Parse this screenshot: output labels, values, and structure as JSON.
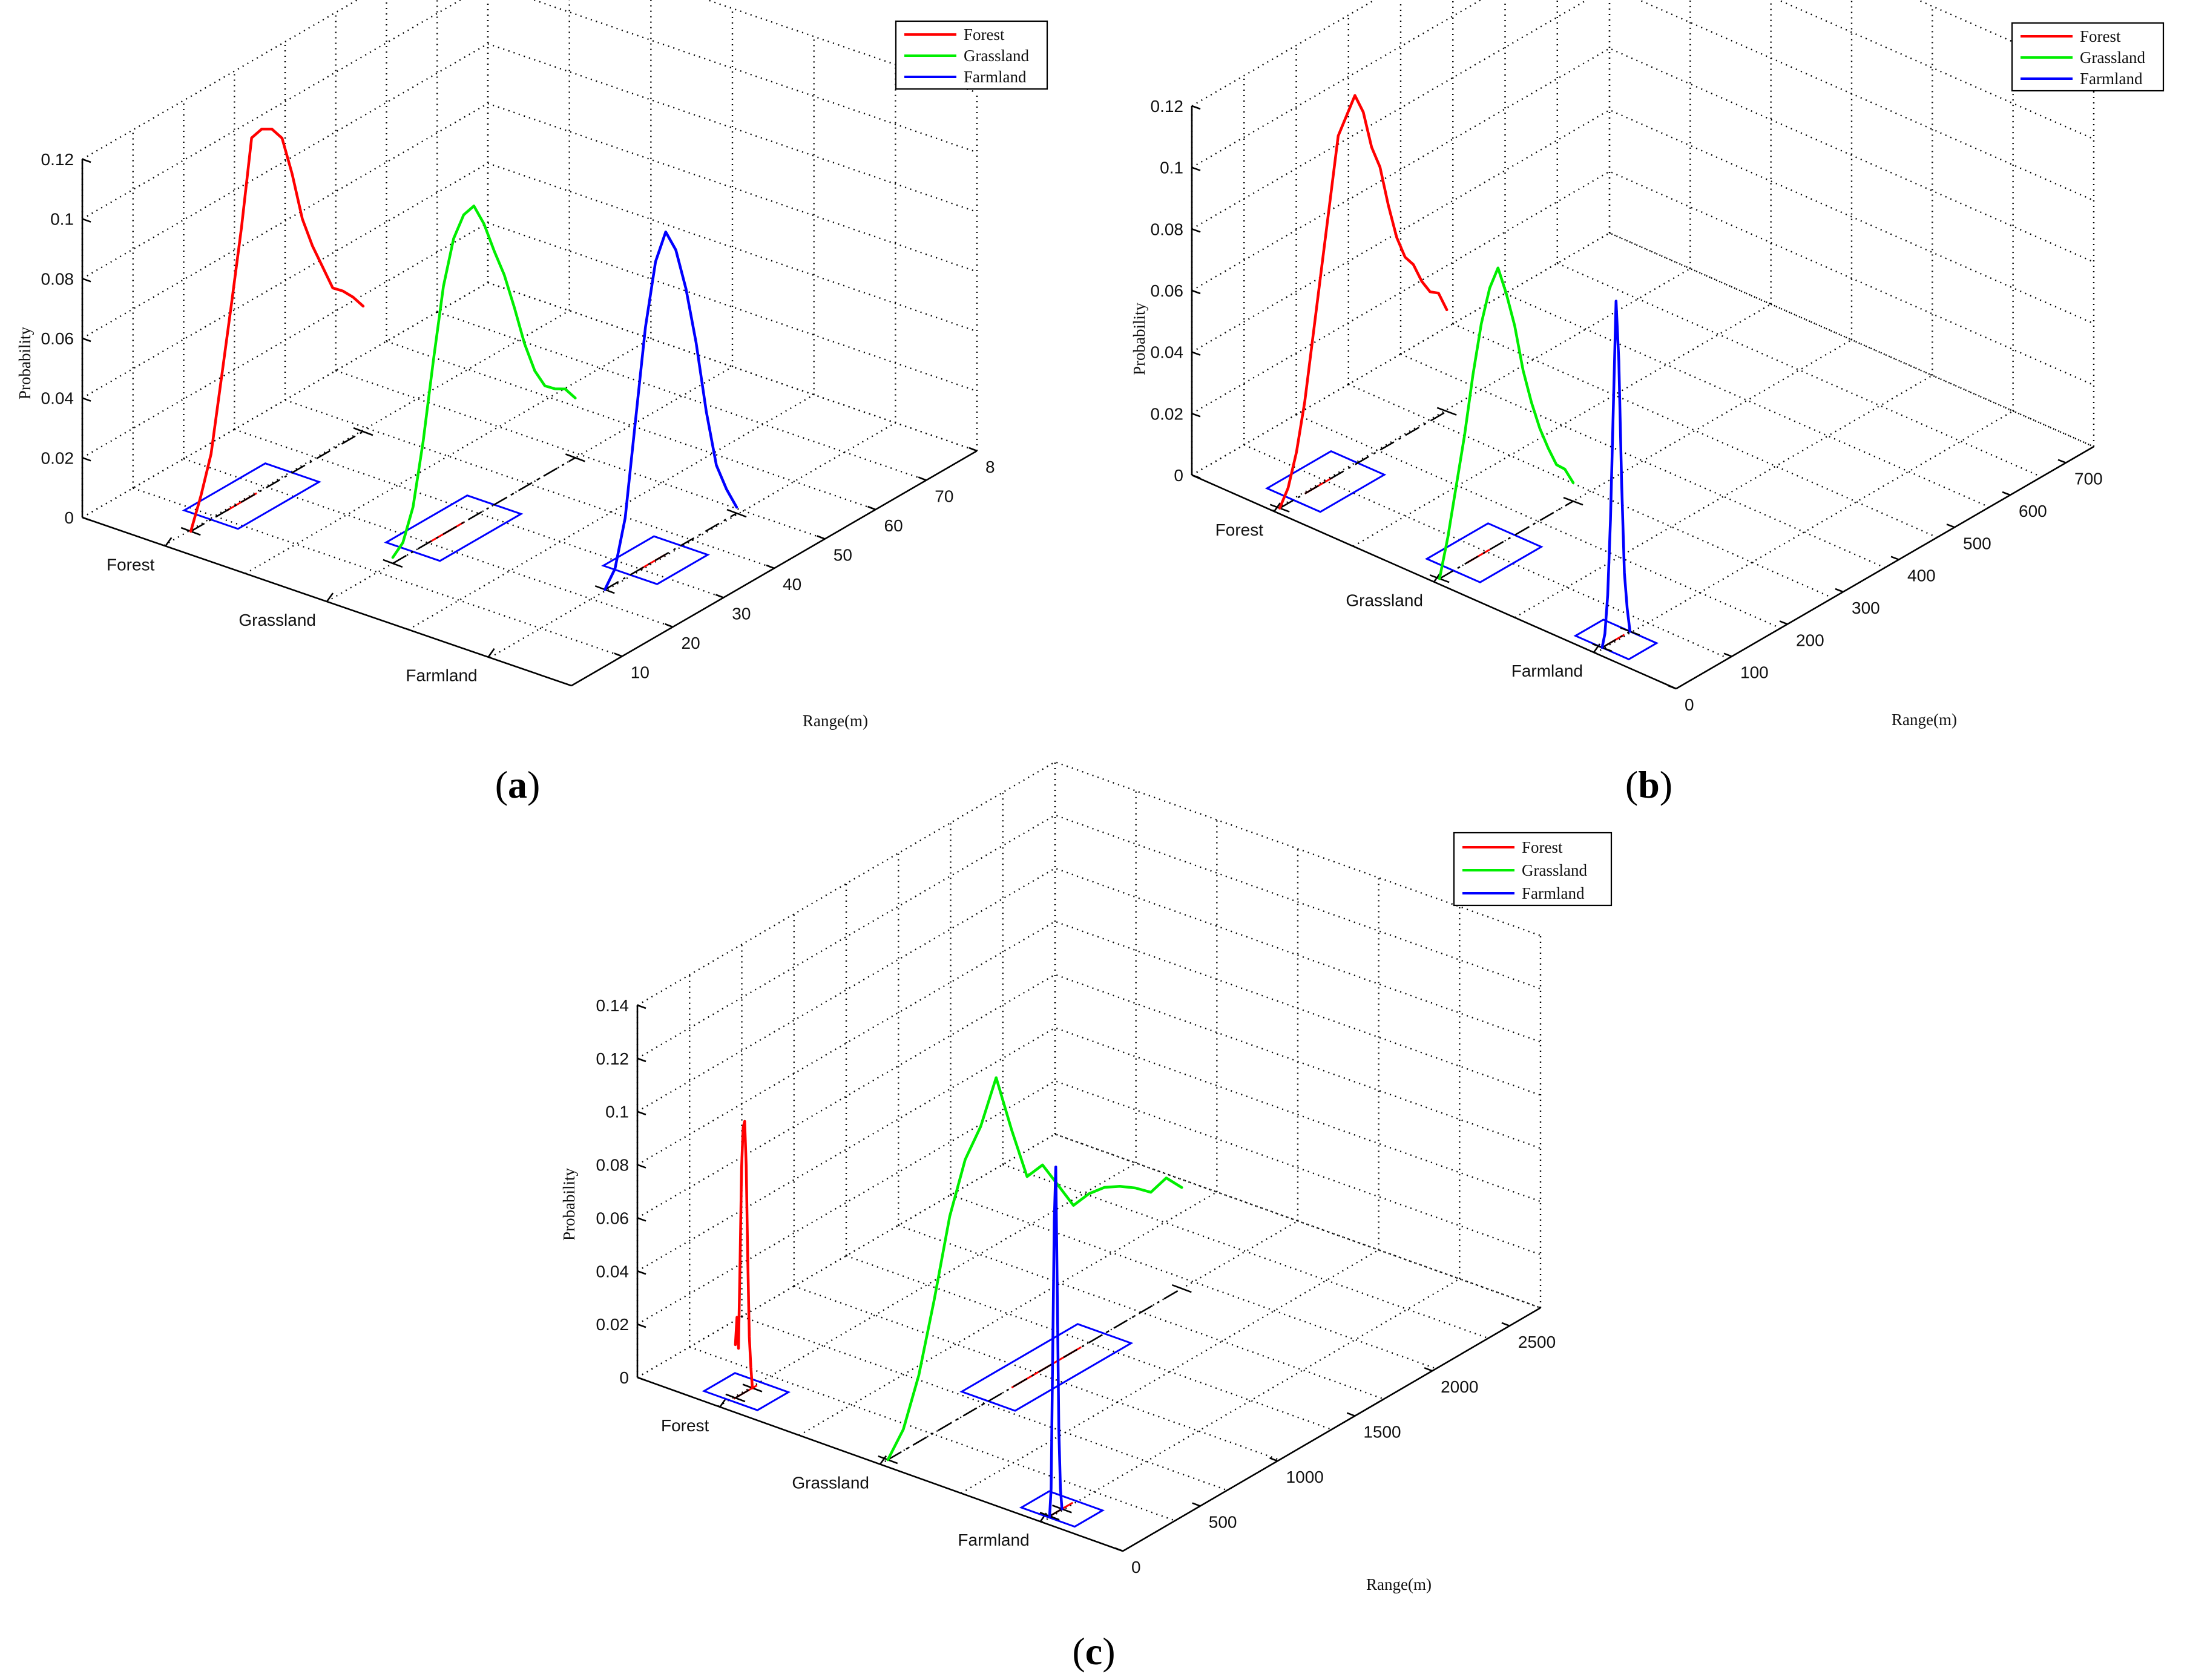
{
  "colors": {
    "forest": "#ff0000",
    "grassland": "#00ee00",
    "farmland": "#0000ff",
    "axis": "#000000"
  },
  "chart_data": [
    {
      "panel": "a",
      "type": "line",
      "caption": "(a)",
      "caption_letter": "a",
      "title": "",
      "xlabel": "Range(m)",
      "ylabel": "Probability",
      "category_axis": [
        "Forest",
        "Grassland",
        "Farmland"
      ],
      "range_ticks": [
        "10",
        "20",
        "30",
        "40",
        "50",
        "60",
        "70",
        "8"
      ],
      "range_lim": [
        0,
        80
      ],
      "zlim": [
        0,
        0.12
      ],
      "z_ticks": [
        "0",
        "0.02",
        "0.04",
        "0.06",
        "0.08",
        "0.1",
        "0.12"
      ],
      "legend": [
        "Forest",
        "Grassland",
        "Farmland"
      ],
      "legend_position": "top-right",
      "series": [
        {
          "name": "Forest",
          "category": "Forest",
          "x": [
            5,
            7,
            9,
            11,
            13,
            15,
            17,
            19,
            21,
            23,
            25,
            27,
            29,
            31,
            33,
            35,
            37,
            39
          ],
          "values": [
            0.0,
            0.01,
            0.022,
            0.045,
            0.068,
            0.092,
            0.12,
            0.121,
            0.119,
            0.114,
            0.1,
            0.083,
            0.072,
            0.063,
            0.054,
            0.051,
            0.047,
            0.042
          ]
        },
        {
          "name": "Grassland",
          "category": "Grassland",
          "x": [
            13,
            15,
            17,
            19,
            21,
            23,
            25,
            27,
            29,
            31,
            33,
            35,
            37,
            39,
            41,
            43,
            45,
            47,
            49
          ],
          "values": [
            0.002,
            0.005,
            0.015,
            0.035,
            0.06,
            0.083,
            0.097,
            0.103,
            0.104,
            0.096,
            0.085,
            0.075,
            0.062,
            0.048,
            0.037,
            0.03,
            0.027,
            0.025,
            0.02
          ]
        },
        {
          "name": "Farmland",
          "category": "Farmland",
          "x": [
            23,
            25,
            27,
            29,
            31,
            33,
            35,
            37,
            39,
            41,
            43,
            45,
            47,
            49
          ],
          "values": [
            0.0,
            0.005,
            0.02,
            0.05,
            0.08,
            0.1,
            0.108,
            0.1,
            0.085,
            0.065,
            0.04,
            0.02,
            0.01,
            0.002
          ]
        }
      ],
      "frames": [
        {
          "category": "Forest",
          "x_range": [
            9,
            25
          ],
          "marker_x": [
            12,
            18
          ]
        },
        {
          "category": "Grassland",
          "x_range": [
            17,
            33
          ],
          "marker_x": [
            20,
            27
          ]
        },
        {
          "category": "Farmland",
          "x_range": [
            28,
            38
          ],
          "marker_x": [
            30,
            35
          ]
        }
      ]
    },
    {
      "panel": "b",
      "type": "line",
      "caption": "(b)",
      "caption_letter": "b",
      "title": "",
      "xlabel": "Range(m)",
      "ylabel": "Probability",
      "category_axis": [
        "Forest",
        "Grassland",
        "Farmland"
      ],
      "range_ticks": [
        "0",
        "100",
        "200",
        "300",
        "400",
        "500",
        "600",
        "700"
      ],
      "range_lim": [
        0,
        750
      ],
      "zlim": [
        0,
        0.12
      ],
      "z_ticks": [
        "0",
        "0.02",
        "0.04",
        "0.06",
        "0.08",
        "0.1",
        "0.12"
      ],
      "legend": [
        "Forest",
        "Grassland",
        "Farmland"
      ],
      "legend_position": "top-right",
      "series": [
        {
          "name": "Forest",
          "category": "Forest",
          "x": [
            10,
            25,
            40,
            55,
            70,
            85,
            100,
            115,
            130,
            145,
            160,
            175,
            190,
            205,
            220,
            235,
            250,
            265,
            280,
            295,
            310
          ],
          "values": [
            0.0,
            0.005,
            0.015,
            0.03,
            0.05,
            0.07,
            0.09,
            0.11,
            0.115,
            0.12,
            0.113,
            0.1,
            0.092,
            0.078,
            0.066,
            0.058,
            0.054,
            0.047,
            0.042,
            0.04,
            0.033
          ]
        },
        {
          "name": "Grassland",
          "category": "Grassland",
          "x": [
            10,
            25,
            40,
            55,
            70,
            85,
            100,
            115,
            130,
            145,
            160,
            175,
            190,
            205,
            220,
            235,
            250
          ],
          "values": [
            0.0,
            0.012,
            0.027,
            0.042,
            0.06,
            0.075,
            0.085,
            0.09,
            0.08,
            0.068,
            0.052,
            0.04,
            0.03,
            0.022,
            0.015,
            0.012,
            0.006
          ]
        },
        {
          "name": "Farmland",
          "category": "Farmland",
          "x": [
            15,
            20,
            25,
            30,
            35,
            40,
            45,
            50,
            55,
            60,
            65
          ],
          "values": [
            0.0,
            0.004,
            0.016,
            0.04,
            0.075,
            0.11,
            0.09,
            0.05,
            0.02,
            0.008,
            0.0
          ]
        }
      ],
      "frames": [
        {
          "category": "Forest",
          "x_range": [
            35,
            150
          ],
          "marker_x": [
            55,
            105
          ]
        },
        {
          "category": "Grassland",
          "x_range": [
            35,
            145
          ],
          "marker_x": [
            60,
            100
          ]
        },
        {
          "category": "Farmland",
          "x_range": [
            15,
            65
          ],
          "marker_x": [
            22,
            55
          ]
        }
      ]
    },
    {
      "panel": "c",
      "type": "line",
      "caption": "(c)",
      "caption_letter": "c",
      "title": "",
      "xlabel": "Range(m)",
      "ylabel": "Probability",
      "category_axis": [
        "Forest",
        "Grassland",
        "Farmland"
      ],
      "range_ticks": [
        "0",
        "500",
        "1000",
        "1500",
        "2000",
        "2500"
      ],
      "range_lim": [
        0,
        2700
      ],
      "zlim": [
        0,
        0.14
      ],
      "z_ticks": [
        "0",
        "0.02",
        "0.04",
        "0.06",
        "0.08",
        "0.1",
        "0.12",
        "0.14"
      ],
      "legend": [
        "Forest",
        "Grassland",
        "Farmland"
      ],
      "legend_position": "top-right",
      "series": [
        {
          "name": "Forest",
          "category": "Forest",
          "x": [
            100,
            110,
            120,
            130,
            140,
            150,
            160,
            170,
            180,
            190,
            200,
            210
          ],
          "values": [
            0.02,
            0.03,
            0.018,
            0.05,
            0.085,
            0.1,
            0.102,
            0.085,
            0.05,
            0.02,
            0.008,
            0.0
          ]
        },
        {
          "name": "Grassland",
          "category": "Grassland",
          "x": [
            50,
            150,
            250,
            350,
            450,
            550,
            650,
            750,
            850,
            950,
            1050,
            1150,
            1250,
            1350,
            1450,
            1550,
            1650,
            1750,
            1850,
            1950
          ],
          "values": [
            0.0,
            0.008,
            0.025,
            0.05,
            0.078,
            0.096,
            0.105,
            0.12,
            0.097,
            0.076,
            0.077,
            0.066,
            0.055,
            0.056,
            0.055,
            0.052,
            0.048,
            0.043,
            0.045,
            0.038
          ]
        },
        {
          "name": "Farmland",
          "category": "Farmland",
          "x": [
            60,
            70,
            80,
            90,
            100,
            110,
            120,
            130,
            140
          ],
          "values": [
            0.0,
            0.01,
            0.06,
            0.11,
            0.13,
            0.08,
            0.03,
            0.008,
            0.0
          ]
        }
      ],
      "frames": [
        {
          "category": "Forest",
          "x_range": [
            70,
            270
          ],
          "marker_x": [
            90,
            240
          ]
        },
        {
          "category": "Grassland",
          "x_range": [
            700,
            1450
          ],
          "marker_x": [
            850,
            1300
          ]
        },
        {
          "category": "Farmland",
          "x_range": [
            50,
            230
          ],
          "marker_x": [
            70,
            210
          ]
        }
      ]
    }
  ]
}
